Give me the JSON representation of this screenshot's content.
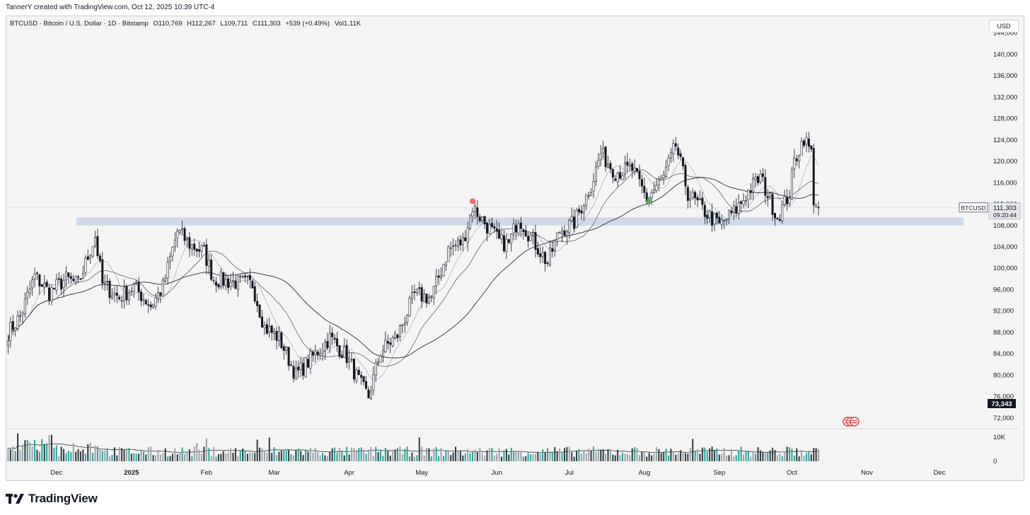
{
  "credit": "TannerY created with TradingView.com, Oct 12, 2025 10:39 UTC-4",
  "legend": {
    "symbol": "BTCUSD · Bitcoin / U.S. Dollar · 1D · Bitstamp",
    "open": "O110,769",
    "high": "H112,267",
    "low": "L109,711",
    "close": "C111,303",
    "change": "+539 (+0.49%)",
    "volume": "Vol1.11K"
  },
  "currency_button": "USD",
  "price_tag": {
    "symbol": "BTCUSD",
    "price": "111,303",
    "countdown": "09:20:44"
  },
  "low_tag": "73,343",
  "brand": "TradingView",
  "colors": {
    "background": "#f4f4f4",
    "candle": "#131722",
    "zone": "#c8d4e6",
    "marker_red": "#ef5350",
    "marker_green": "#4caf50",
    "volume_bar": "#2f3a3f",
    "volume_green": "#26a69a"
  },
  "chart_data": {
    "type": "candlestick",
    "y_ticks": [
      "144,000",
      "140,000",
      "136,000",
      "132,000",
      "128,000",
      "124,000",
      "120,000",
      "116,000",
      "112,000",
      "108,000",
      "104,000",
      "100,000",
      "96,000",
      "92,000",
      "88,000",
      "84,000",
      "80,000",
      "76,000",
      "72,000"
    ],
    "y_range": [
      70000,
      147000
    ],
    "x_labels": [
      "Dec",
      "2025",
      "Feb",
      "Mar",
      "Apr",
      "May",
      "Jun",
      "Jul",
      "Aug",
      "Sep",
      "Oct",
      "Nov",
      "Dec"
    ],
    "x_range": [
      "2024-11-10",
      "2025-12-20"
    ],
    "volume_ticks": [
      "10K",
      "0"
    ],
    "support_zone": [
      108000,
      109500
    ],
    "last_price": 111303,
    "close_path": [
      [
        "2024-11-11",
        88000
      ],
      [
        "2024-11-16",
        91000
      ],
      [
        "2024-11-22",
        98500
      ],
      [
        "2024-11-28",
        95500
      ],
      [
        "2024-12-05",
        98000
      ],
      [
        "2024-12-10",
        97000
      ],
      [
        "2024-12-17",
        106000
      ],
      [
        "2024-12-20",
        97000
      ],
      [
        "2024-12-27",
        94500
      ],
      [
        "2025-01-02",
        96500
      ],
      [
        "2025-01-09",
        93000
      ],
      [
        "2025-01-14",
        96500
      ],
      [
        "2025-01-20",
        107000
      ],
      [
        "2025-01-25",
        104500
      ],
      [
        "2025-01-31",
        103000
      ],
      [
        "2025-02-04",
        98000
      ],
      [
        "2025-02-10",
        97500
      ],
      [
        "2025-02-20",
        97000
      ],
      [
        "2025-02-25",
        89000
      ],
      [
        "2025-03-03",
        87000
      ],
      [
        "2025-03-10",
        80000
      ],
      [
        "2025-03-17",
        83500
      ],
      [
        "2025-03-24",
        87000
      ],
      [
        "2025-03-31",
        83500
      ],
      [
        "2025-04-06",
        78000
      ],
      [
        "2025-04-09",
        76000
      ],
      [
        "2025-04-14",
        84500
      ],
      [
        "2025-04-21",
        87500
      ],
      [
        "2025-04-28",
        95000
      ],
      [
        "2025-05-05",
        94500
      ],
      [
        "2025-05-12",
        103500
      ],
      [
        "2025-05-18",
        105000
      ],
      [
        "2025-05-22",
        111500
      ],
      [
        "2025-05-27",
        108500
      ],
      [
        "2025-06-02",
        105000
      ],
      [
        "2025-06-06",
        104500
      ],
      [
        "2025-06-10",
        109500
      ],
      [
        "2025-06-17",
        104500
      ],
      [
        "2025-06-22",
        101000
      ],
      [
        "2025-06-27",
        107000
      ],
      [
        "2025-07-03",
        108500
      ],
      [
        "2025-07-10",
        115500
      ],
      [
        "2025-07-14",
        121500
      ],
      [
        "2025-07-20",
        118000
      ],
      [
        "2025-07-27",
        118500
      ],
      [
        "2025-08-02",
        113000
      ],
      [
        "2025-08-09",
        117000
      ],
      [
        "2025-08-14",
        123000
      ],
      [
        "2025-08-19",
        114000
      ],
      [
        "2025-08-25",
        111000
      ],
      [
        "2025-09-01",
        108000
      ],
      [
        "2025-09-08",
        111000
      ],
      [
        "2025-09-14",
        115000
      ],
      [
        "2025-09-18",
        117000
      ],
      [
        "2025-09-25",
        109500
      ],
      [
        "2025-09-30",
        114000
      ],
      [
        "2025-10-02",
        120000
      ],
      [
        "2025-10-06",
        124500
      ],
      [
        "2025-10-09",
        121500
      ],
      [
        "2025-10-10",
        113000
      ],
      [
        "2025-10-12",
        111303
      ]
    ],
    "markers": [
      {
        "date": "2025-05-22",
        "price": 112300,
        "color": "red"
      },
      {
        "date": "2025-08-03",
        "price": 112300,
        "color": "green"
      }
    ]
  }
}
